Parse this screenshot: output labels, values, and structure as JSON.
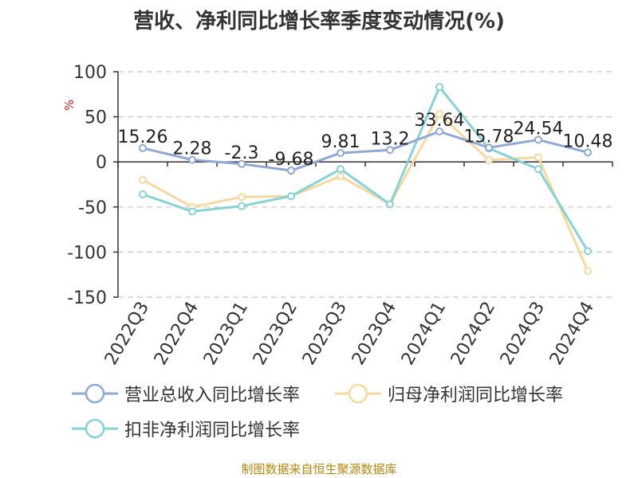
{
  "title": "营收、净利同比增长率季度变动情况(%)",
  "source": "制图数据来自恒生聚源数据库",
  "chart_data": {
    "type": "line",
    "categories": [
      "2022Q3",
      "2022Q4",
      "2023Q1",
      "2023Q2",
      "2023Q3",
      "2023Q4",
      "2024Q1",
      "2024Q2",
      "2024Q3",
      "2024Q4"
    ],
    "ylabel": "%",
    "ylim": [
      -150,
      100
    ],
    "yticks": [
      100,
      50,
      0,
      -50,
      -100,
      -150
    ],
    "grid": true,
    "legend_position": "bottom",
    "series": [
      {
        "name": "营业总收入同比增长率",
        "color": "#8fa8d6",
        "values": [
          15.26,
          2.28,
          -2.3,
          -9.68,
          9.81,
          13.2,
          33.64,
          15.78,
          24.54,
          10.48
        ],
        "labels": [
          "15.26",
          "2.28",
          "-2.3",
          "-9.68",
          "9.81",
          "13.2",
          "33.64",
          "15.78",
          "24.54",
          "10.48"
        ]
      },
      {
        "name": "归母净利润同比增长率",
        "color": "#f7d9a0",
        "values": [
          -20,
          -50,
          -39,
          -38,
          -16,
          -47,
          53,
          2,
          5,
          -121
        ]
      },
      {
        "name": "扣非净利润同比增长率",
        "color": "#86d3d6",
        "values": [
          -36,
          -55,
          -49,
          -38,
          -8,
          -47,
          83,
          15,
          -8,
          -99
        ]
      }
    ]
  }
}
